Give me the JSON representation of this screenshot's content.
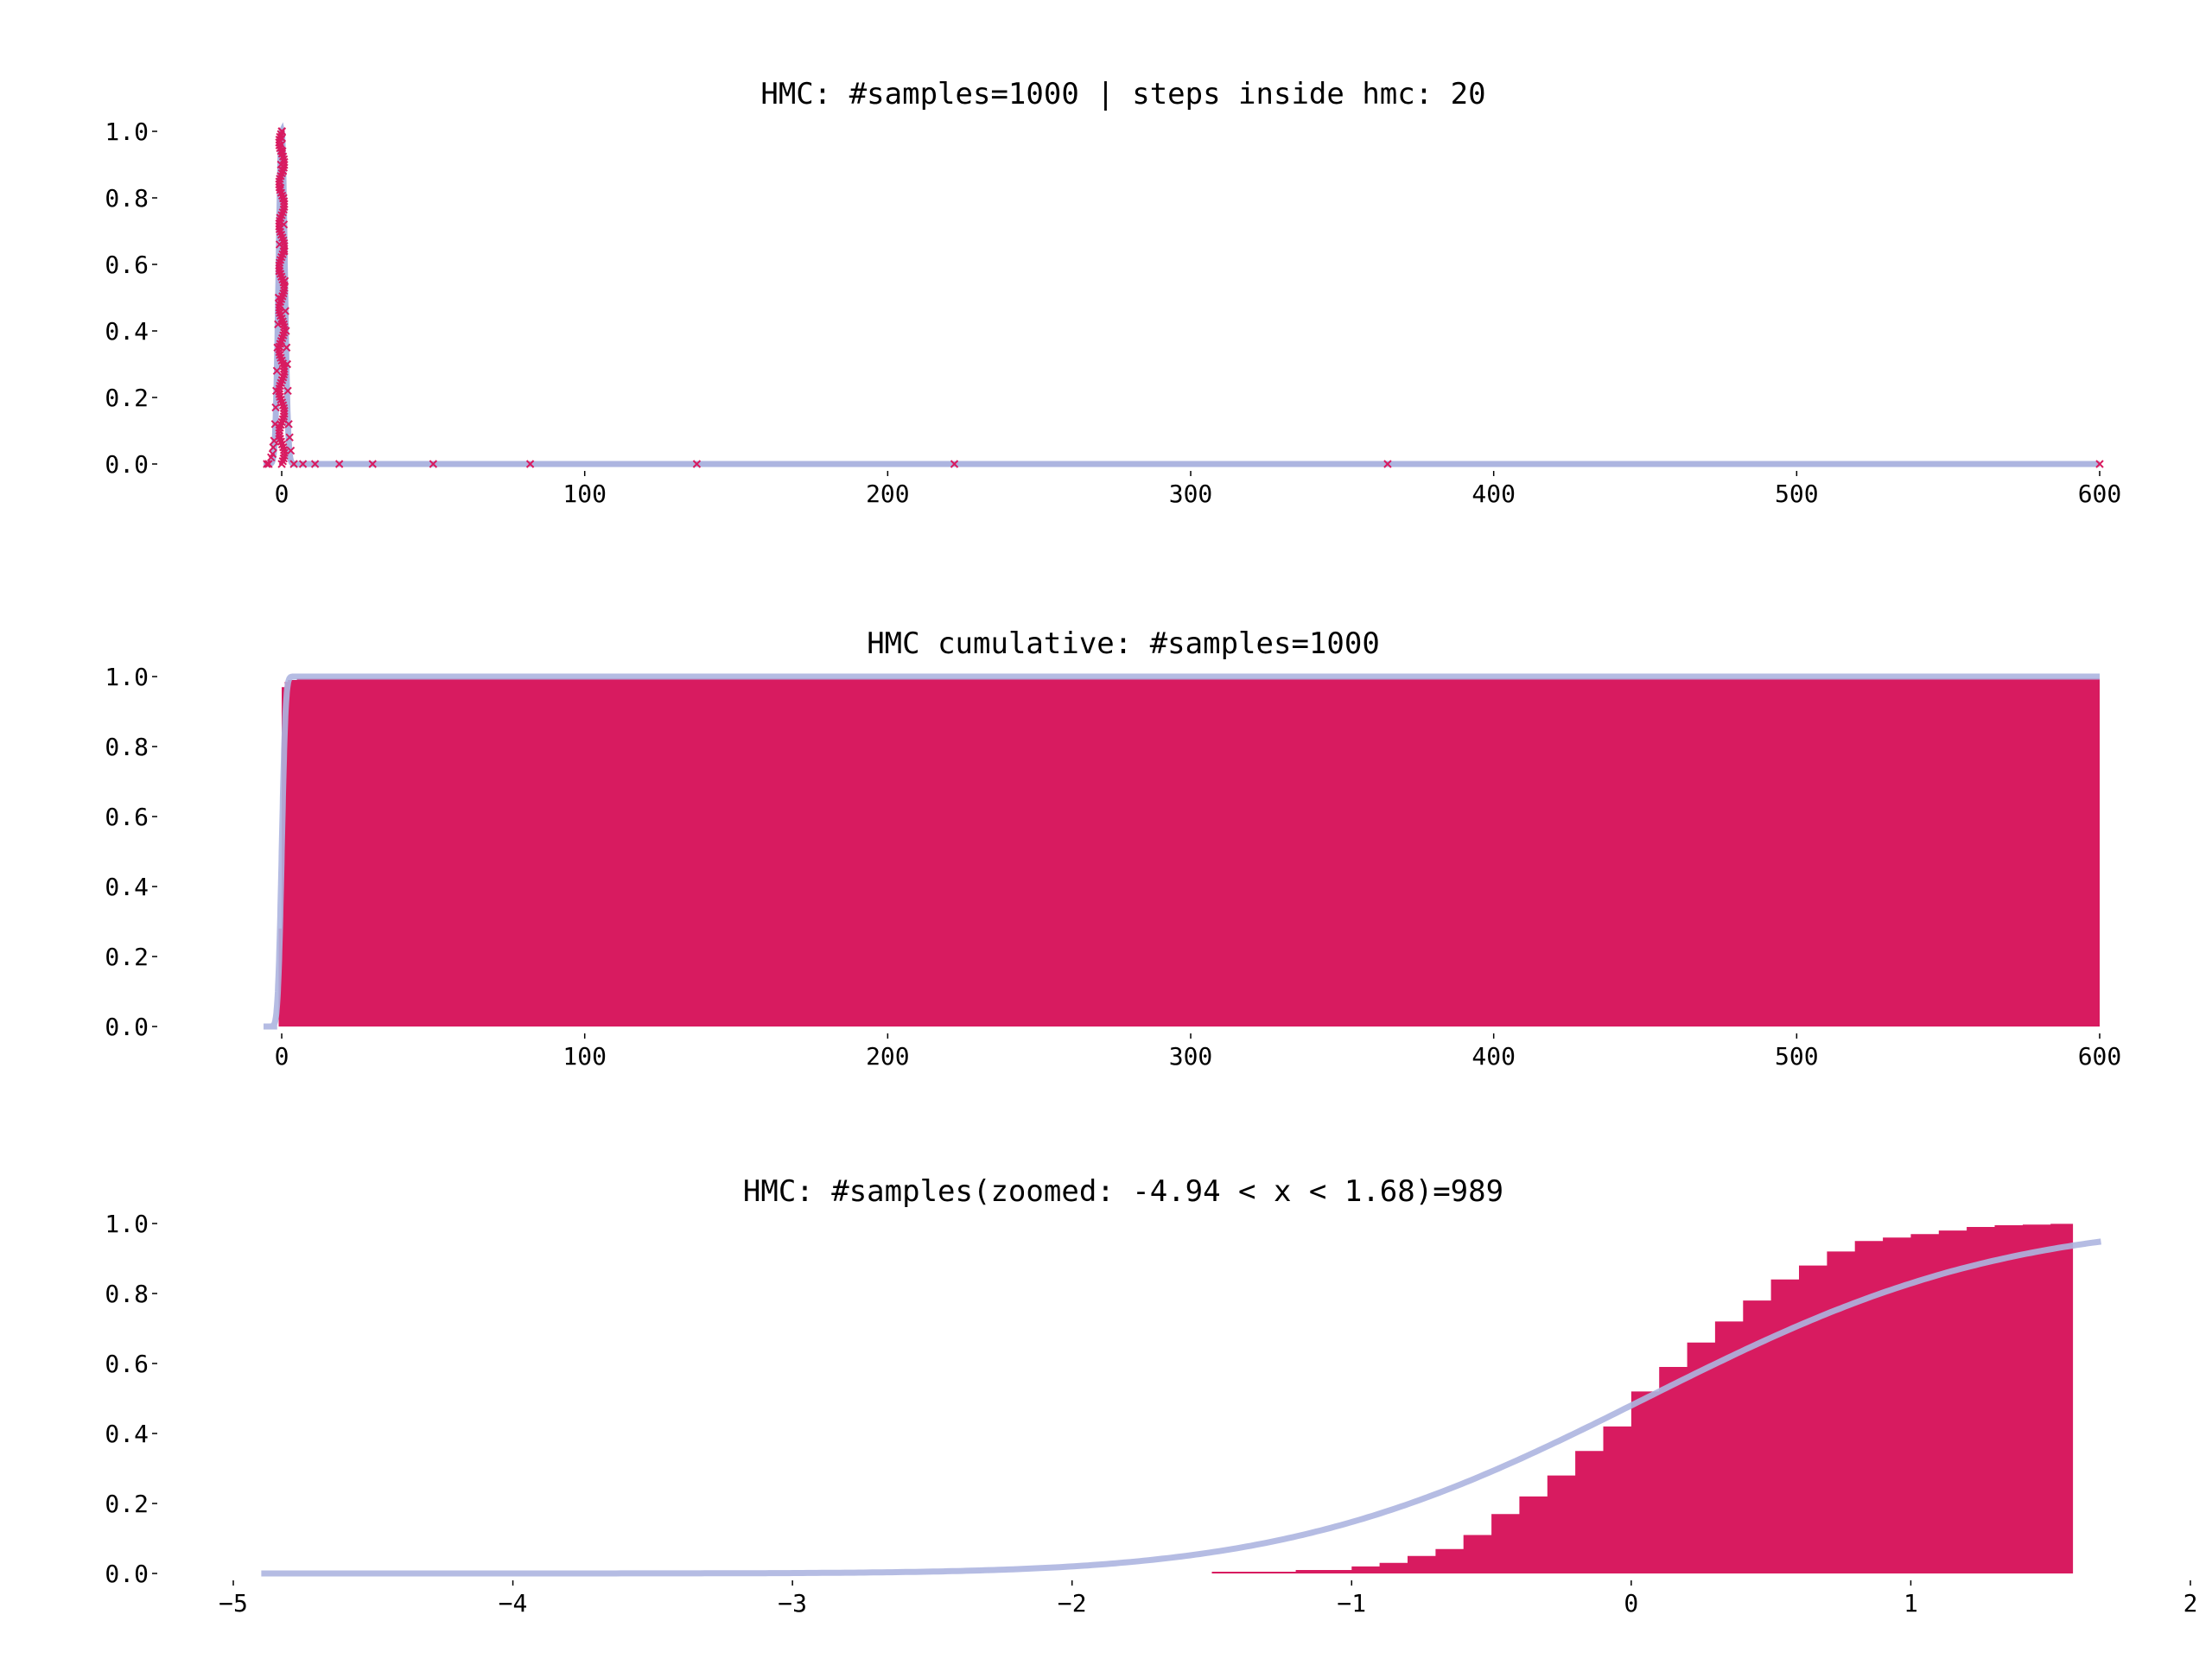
{
  "colors": {
    "samples": "#d81b60",
    "reference": "#adb5e0"
  },
  "chart_data": [
    {
      "type": "scatter",
      "title": "HMC: #samples=1000 | steps inside hmc: 20",
      "xlim": [
        -6,
        600
      ],
      "ylim": [
        0,
        1.0
      ],
      "xticks": [
        0,
        100,
        200,
        300,
        400,
        500,
        600
      ],
      "yticks": [
        0.0,
        0.2,
        0.4,
        0.6,
        0.8,
        1.0
      ],
      "grid": false,
      "series": [
        {
          "role": "samples",
          "marker": "x",
          "x": [
            -4.9,
            -4.3,
            -3.5,
            -3,
            -2.8,
            -2.5,
            -2.2,
            -2,
            -1.8,
            -1.6,
            -1.4,
            -1.2,
            -1,
            -0.85,
            -0.7,
            -0.55,
            -0.4,
            -0.25,
            -0.1,
            0,
            0.1,
            0.25,
            0.4,
            0.55,
            0.7,
            0.85,
            1,
            1.2,
            1.4,
            1.6,
            1.8,
            2,
            2.3,
            2.6,
            3,
            4,
            7,
            11,
            19,
            30,
            50,
            82,
            137,
            222,
            365,
            600
          ],
          "y": [
            0,
            0,
            0.02,
            0.03,
            0.05,
            0.07,
            0.12,
            0.17,
            0.22,
            0.28,
            0.35,
            0.42,
            0.5,
            0.58,
            0.66,
            0.74,
            0.83,
            0.9,
            0.96,
            1.0,
            0.98,
            0.94,
            0.88,
            0.8,
            0.72,
            0.64,
            0.55,
            0.46,
            0.4,
            0.35,
            0.3,
            0.22,
            0.12,
            0.08,
            0.04,
            0,
            0,
            0,
            0,
            0,
            0,
            0,
            0,
            0,
            0,
            0
          ]
        },
        {
          "role": "reference",
          "line": true
        }
      ]
    },
    {
      "type": "area",
      "title": "HMC cumulative: #samples=1000",
      "xlim": [
        -6,
        600
      ],
      "ylim": [
        0,
        1.0
      ],
      "xticks": [
        0,
        100,
        200,
        300,
        400,
        500,
        600
      ],
      "yticks": [
        0.0,
        0.2,
        0.4,
        0.6,
        0.8,
        1.0
      ],
      "grid": false,
      "series": [
        {
          "role": "samples",
          "x": [
            -1.7,
            -1,
            0,
            1,
            2,
            5,
            600
          ],
          "y": [
            0,
            0.28,
            0.97,
            0.985,
            0.99,
            0.995,
            1.0
          ]
        },
        {
          "role": "reference",
          "line": true
        }
      ]
    },
    {
      "type": "area",
      "title": "HMC: #samples(zoomed: -4.94 < x < 1.68)=989",
      "xlim": [
        -5,
        2
      ],
      "ylim": [
        0,
        1.0
      ],
      "xticks": [
        -5,
        -4,
        -3,
        -2,
        -1,
        0,
        1,
        2
      ],
      "xticklabels": [
        "−5",
        "−4",
        "−3",
        "−2",
        "−1",
        "0",
        "1",
        "2"
      ],
      "yticks": [
        0.0,
        0.2,
        0.4,
        0.6,
        0.8,
        1.0
      ],
      "grid": false,
      "series": [
        {
          "role": "samples",
          "x": [
            -4.94,
            -2,
            -1.5,
            -1.2,
            -1,
            -0.9,
            -0.8,
            -0.7,
            -0.6,
            -0.5,
            -0.4,
            -0.3,
            -0.2,
            -0.1,
            0,
            0.1,
            0.2,
            0.3,
            0.4,
            0.5,
            0.6,
            0.7,
            0.8,
            0.9,
            1,
            1.1,
            1.2,
            1.3,
            1.4,
            1.5,
            1.58
          ],
          "y": [
            0,
            0,
            0.005,
            0.01,
            0.02,
            0.03,
            0.05,
            0.07,
            0.11,
            0.17,
            0.22,
            0.28,
            0.35,
            0.42,
            0.52,
            0.59,
            0.66,
            0.72,
            0.78,
            0.84,
            0.88,
            0.92,
            0.95,
            0.96,
            0.97,
            0.98,
            0.99,
            0.995,
            0.997,
            0.999,
            1.0
          ]
        },
        {
          "role": "reference",
          "line": true
        }
      ]
    }
  ],
  "tick_labels": [
    [
      "0.0",
      "0.2",
      "0.4",
      "0.6",
      "0.8",
      "1.0",
      "0",
      "100",
      "200",
      "300",
      "400",
      "500",
      "600"
    ],
    [
      "0.0",
      "0.2",
      "0.4",
      "0.6",
      "0.8",
      "1.0",
      "0",
      "100",
      "200",
      "300",
      "400",
      "500",
      "600"
    ],
    [
      "0.0",
      "0.2",
      "0.4",
      "0.6",
      "0.8",
      "1.0",
      "−5",
      "−4",
      "−3",
      "−2",
      "−1",
      "0",
      "1",
      "2"
    ]
  ]
}
